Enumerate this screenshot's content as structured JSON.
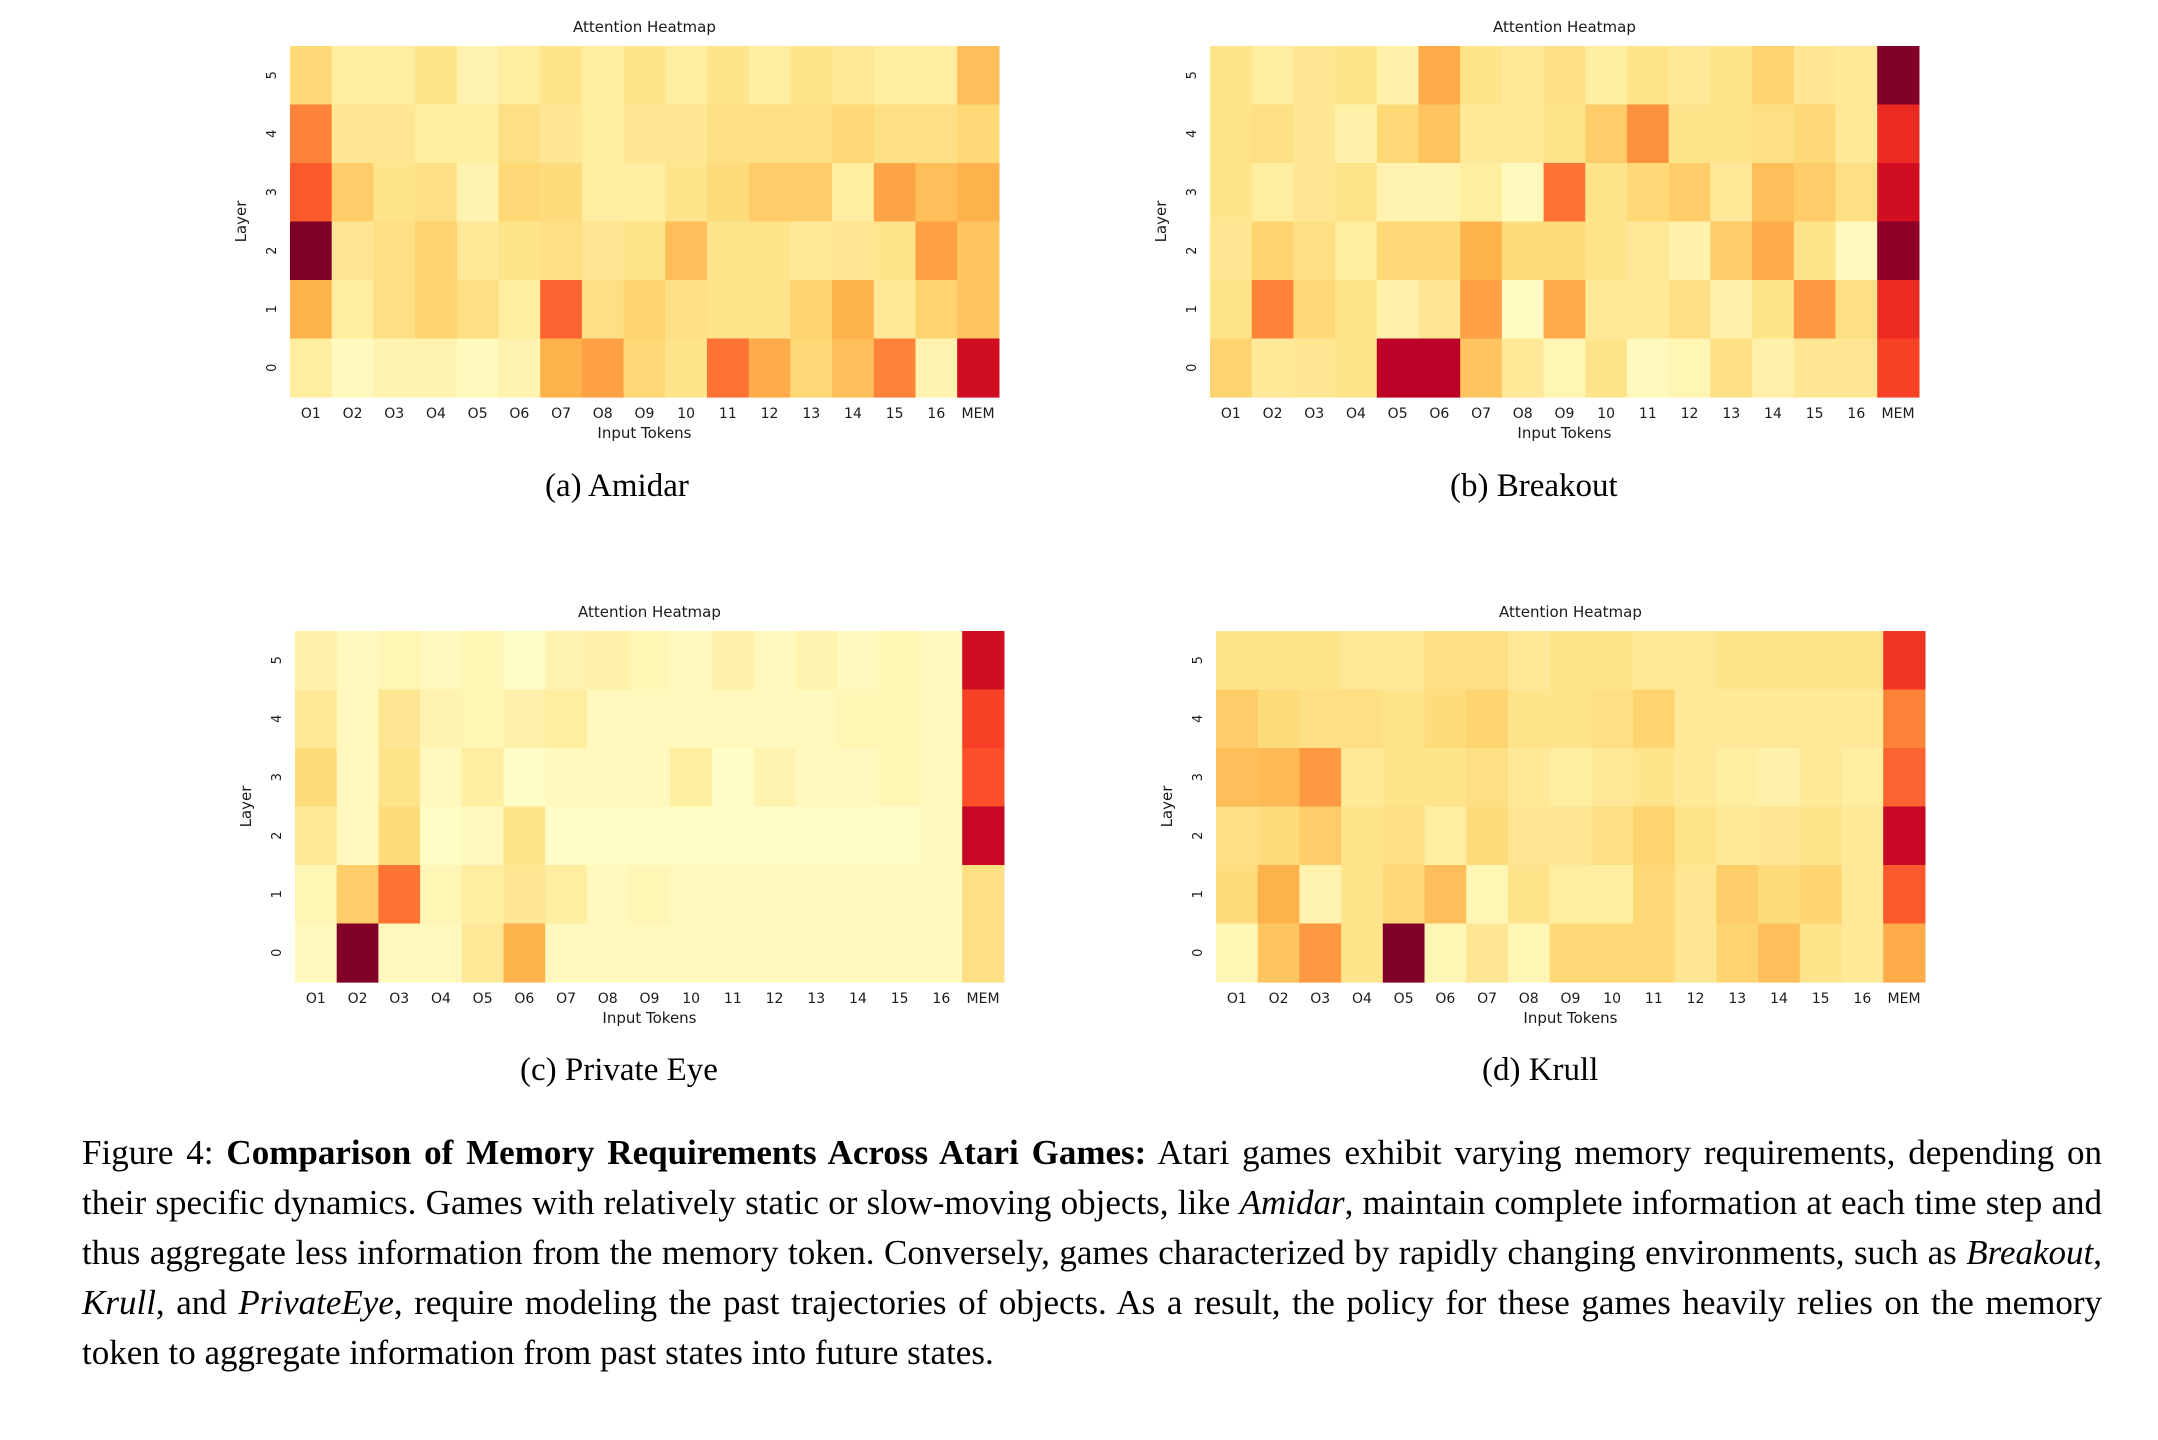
{
  "chart_data": [
    {
      "type": "heatmap",
      "title": "Attention Heatmap",
      "xlabel": "Input Tokens",
      "ylabel": "Layer",
      "x": [
        "O1",
        "O2",
        "O3",
        "O4",
        "O5",
        "O6",
        "O7",
        "O8",
        "O9",
        "10",
        "11",
        "12",
        "13",
        "14",
        "15",
        "16",
        "MEM"
      ],
      "y": [
        "5",
        "4",
        "3",
        "2",
        "1",
        "0"
      ],
      "values": [
        [
          0.3,
          0.15,
          0.15,
          0.22,
          0.1,
          0.15,
          0.22,
          0.15,
          0.22,
          0.15,
          0.22,
          0.15,
          0.22,
          0.18,
          0.15,
          0.15,
          0.4
        ],
        [
          0.62,
          0.2,
          0.2,
          0.15,
          0.15,
          0.25,
          0.2,
          0.15,
          0.2,
          0.2,
          0.25,
          0.25,
          0.25,
          0.3,
          0.25,
          0.25,
          0.3
        ],
        [
          0.7,
          0.35,
          0.22,
          0.25,
          0.1,
          0.3,
          0.28,
          0.15,
          0.15,
          0.22,
          0.28,
          0.35,
          0.35,
          0.15,
          0.5,
          0.4,
          0.45
        ],
        [
          1.0,
          0.2,
          0.25,
          0.32,
          0.18,
          0.22,
          0.25,
          0.2,
          0.22,
          0.4,
          0.22,
          0.22,
          0.18,
          0.2,
          0.22,
          0.52,
          0.38
        ],
        [
          0.45,
          0.15,
          0.25,
          0.32,
          0.25,
          0.15,
          0.68,
          0.25,
          0.32,
          0.25,
          0.22,
          0.22,
          0.32,
          0.45,
          0.18,
          0.32,
          0.38
        ],
        [
          0.15,
          0.05,
          0.1,
          0.1,
          0.05,
          0.1,
          0.45,
          0.52,
          0.3,
          0.22,
          0.65,
          0.48,
          0.3,
          0.4,
          0.62,
          0.1,
          0.88
        ]
      ],
      "color_map": "YlOrRd",
      "subcaption": "(a) Amidar"
    },
    {
      "type": "heatmap",
      "title": "Attention Heatmap",
      "xlabel": "Input Tokens",
      "ylabel": "Layer",
      "x": [
        "O1",
        "O2",
        "O3",
        "O4",
        "O5",
        "O6",
        "O7",
        "O8",
        "O9",
        "10",
        "11",
        "12",
        "13",
        "14",
        "15",
        "16",
        "MEM"
      ],
      "y": [
        "5",
        "4",
        "3",
        "2",
        "1",
        "0"
      ],
      "values": [
        [
          0.22,
          0.15,
          0.2,
          0.22,
          0.12,
          0.48,
          0.22,
          0.18,
          0.25,
          0.15,
          0.22,
          0.18,
          0.22,
          0.32,
          0.2,
          0.18,
          1.0
        ],
        [
          0.22,
          0.25,
          0.2,
          0.12,
          0.3,
          0.38,
          0.18,
          0.18,
          0.22,
          0.35,
          0.58,
          0.22,
          0.22,
          0.25,
          0.3,
          0.18,
          0.8
        ],
        [
          0.22,
          0.15,
          0.2,
          0.22,
          0.1,
          0.1,
          0.15,
          0.05,
          0.65,
          0.22,
          0.3,
          0.35,
          0.18,
          0.4,
          0.35,
          0.25,
          0.88
        ],
        [
          0.2,
          0.32,
          0.25,
          0.15,
          0.3,
          0.3,
          0.45,
          0.28,
          0.28,
          0.22,
          0.18,
          0.12,
          0.35,
          0.48,
          0.22,
          0.05,
          0.98
        ],
        [
          0.22,
          0.62,
          0.3,
          0.22,
          0.12,
          0.2,
          0.52,
          0.03,
          0.48,
          0.18,
          0.18,
          0.25,
          0.12,
          0.22,
          0.55,
          0.25,
          0.8
        ],
        [
          0.32,
          0.18,
          0.2,
          0.22,
          0.92,
          0.92,
          0.38,
          0.18,
          0.08,
          0.22,
          0.05,
          0.08,
          0.25,
          0.12,
          0.2,
          0.2,
          0.75
        ]
      ],
      "color_map": "YlOrRd",
      "subcaption": "(b) Breakout"
    },
    {
      "type": "heatmap",
      "title": "Attention Heatmap",
      "xlabel": "Input Tokens",
      "ylabel": "Layer",
      "x": [
        "O1",
        "O2",
        "O3",
        "O4",
        "O5",
        "O6",
        "O7",
        "O8",
        "O9",
        "10",
        "11",
        "12",
        "13",
        "14",
        "15",
        "16",
        "MEM"
      ],
      "y": [
        "5",
        "4",
        "3",
        "2",
        "1",
        "0"
      ],
      "values": [
        [
          0.12,
          0.05,
          0.08,
          0.05,
          0.08,
          0.02,
          0.1,
          0.12,
          0.08,
          0.05,
          0.12,
          0.05,
          0.1,
          0.05,
          0.08,
          0.05,
          0.88
        ],
        [
          0.18,
          0.05,
          0.2,
          0.1,
          0.08,
          0.12,
          0.15,
          0.05,
          0.05,
          0.05,
          0.05,
          0.05,
          0.05,
          0.08,
          0.08,
          0.05,
          0.75
        ],
        [
          0.28,
          0.05,
          0.22,
          0.05,
          0.15,
          0.02,
          0.05,
          0.05,
          0.05,
          0.15,
          0.02,
          0.1,
          0.05,
          0.05,
          0.08,
          0.05,
          0.72
        ],
        [
          0.18,
          0.05,
          0.28,
          0.02,
          0.05,
          0.22,
          0.02,
          0.02,
          0.02,
          0.02,
          0.02,
          0.02,
          0.02,
          0.02,
          0.02,
          0.05,
          0.9
        ],
        [
          0.08,
          0.35,
          0.65,
          0.08,
          0.15,
          0.2,
          0.15,
          0.05,
          0.08,
          0.05,
          0.05,
          0.05,
          0.05,
          0.05,
          0.05,
          0.05,
          0.25
        ],
        [
          0.05,
          1.0,
          0.05,
          0.05,
          0.18,
          0.45,
          0.05,
          0.05,
          0.05,
          0.05,
          0.05,
          0.05,
          0.05,
          0.05,
          0.05,
          0.05,
          0.25
        ]
      ],
      "color_map": "YlOrRd",
      "subcaption": "(c) Private Eye"
    },
    {
      "type": "heatmap",
      "title": "Attention Heatmap",
      "xlabel": "Input Tokens",
      "ylabel": "Layer",
      "x": [
        "O1",
        "O2",
        "O3",
        "O4",
        "O5",
        "O6",
        "O7",
        "O8",
        "O9",
        "10",
        "11",
        "12",
        "13",
        "14",
        "15",
        "16",
        "MEM"
      ],
      "y": [
        "5",
        "4",
        "3",
        "2",
        "1",
        "0"
      ],
      "values": [
        [
          0.22,
          0.22,
          0.22,
          0.18,
          0.18,
          0.25,
          0.25,
          0.18,
          0.22,
          0.22,
          0.18,
          0.18,
          0.22,
          0.22,
          0.22,
          0.22,
          0.78
        ],
        [
          0.35,
          0.28,
          0.25,
          0.25,
          0.22,
          0.28,
          0.32,
          0.22,
          0.22,
          0.25,
          0.32,
          0.18,
          0.18,
          0.18,
          0.18,
          0.18,
          0.62
        ],
        [
          0.4,
          0.42,
          0.55,
          0.18,
          0.22,
          0.22,
          0.25,
          0.18,
          0.15,
          0.18,
          0.22,
          0.18,
          0.15,
          0.12,
          0.18,
          0.15,
          0.68
        ],
        [
          0.25,
          0.28,
          0.35,
          0.22,
          0.25,
          0.15,
          0.28,
          0.2,
          0.2,
          0.25,
          0.32,
          0.22,
          0.18,
          0.2,
          0.22,
          0.18,
          0.9
        ],
        [
          0.28,
          0.45,
          0.1,
          0.22,
          0.3,
          0.4,
          0.08,
          0.22,
          0.15,
          0.15,
          0.3,
          0.2,
          0.35,
          0.28,
          0.32,
          0.18,
          0.7
        ],
        [
          0.08,
          0.38,
          0.55,
          0.22,
          1.0,
          0.08,
          0.2,
          0.08,
          0.3,
          0.3,
          0.3,
          0.2,
          0.32,
          0.4,
          0.22,
          0.18,
          0.48
        ]
      ],
      "color_map": "YlOrRd",
      "subcaption": "(d) Krull"
    }
  ],
  "caption": {
    "prefix": "Figure 4: ",
    "bold": "Comparison of Memory Requirements Across Atari Games:",
    "text1": " Atari games exhibit varying memory requirements, depending on their specific dynamics. Games with relatively static or slow-moving objects, like ",
    "game_amidar": "Amidar",
    "text2": ", maintain complete information at each time step and thus aggregate less information from the memory token. Conversely, games characterized by rapidly changing environments, such as ",
    "game_breakout": "Breakout",
    "sep1": ", ",
    "game_krull": "Krull",
    "sep2": ", and ",
    "game_privateeye": "PrivateEye",
    "text3": ", require modeling the past trajectories of objects. As a result, the policy for these games heavily relies on the memory token to aggregate information from past states into future states."
  }
}
